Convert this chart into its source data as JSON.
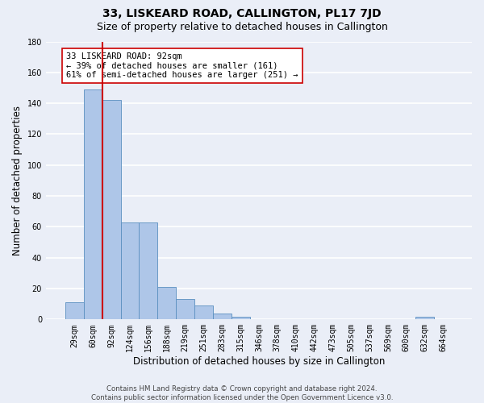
{
  "title": "33, LISKEARD ROAD, CALLINGTON, PL17 7JD",
  "subtitle": "Size of property relative to detached houses in Callington",
  "xlabel": "Distribution of detached houses by size in Callington",
  "ylabel": "Number of detached properties",
  "footer_line1": "Contains HM Land Registry data © Crown copyright and database right 2024.",
  "footer_line2": "Contains public sector information licensed under the Open Government Licence v3.0.",
  "categories": [
    "29sqm",
    "60sqm",
    "92sqm",
    "124sqm",
    "156sqm",
    "188sqm",
    "219sqm",
    "251sqm",
    "283sqm",
    "315sqm",
    "346sqm",
    "378sqm",
    "410sqm",
    "442sqm",
    "473sqm",
    "505sqm",
    "537sqm",
    "569sqm",
    "600sqm",
    "632sqm",
    "664sqm"
  ],
  "values": [
    11,
    149,
    142,
    63,
    63,
    21,
    13,
    9,
    4,
    2,
    0,
    0,
    0,
    0,
    0,
    0,
    0,
    0,
    0,
    2,
    0
  ],
  "bar_color": "#aec6e8",
  "bar_edge_color": "#5a8fc0",
  "highlight_line_color": "#cc0000",
  "annotation_text": "33 LISKEARD ROAD: 92sqm\n← 39% of detached houses are smaller (161)\n61% of semi-detached houses are larger (251) →",
  "annotation_box_color": "#ffffff",
  "annotation_box_edge": "#cc0000",
  "ylim": [
    0,
    180
  ],
  "yticks": [
    0,
    20,
    40,
    60,
    80,
    100,
    120,
    140,
    160,
    180
  ],
  "bg_color": "#eaeef7",
  "plot_bg_color": "#eaeef7",
  "grid_color": "#ffffff",
  "title_fontsize": 10,
  "subtitle_fontsize": 9,
  "axis_label_fontsize": 8.5,
  "tick_fontsize": 7
}
